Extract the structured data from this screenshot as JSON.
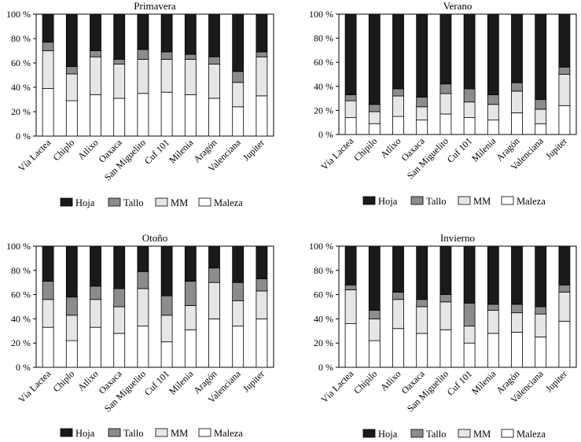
{
  "colors": {
    "Maleza": "#ffffff",
    "MM": "#e6e6e6",
    "Tallo": "#8c8c8c",
    "Hoja": "#1a1a1a",
    "stroke": "#000000"
  },
  "chart_data": [
    {
      "type": "bar",
      "stacked": true,
      "title": "Primavera",
      "categories": [
        "Vía Lactea",
        "Chiplo",
        "Atlixo",
        "Oaxaca",
        "San Miguelito",
        "Cuf 101",
        "Milenia",
        "Aragón",
        "Valenciana",
        "Jupiter"
      ],
      "series": [
        {
          "name": "Maleza",
          "values": [
            39,
            29,
            34,
            31,
            35,
            36,
            34,
            31,
            24,
            33
          ]
        },
        {
          "name": "MM",
          "values": [
            31,
            22,
            31,
            28,
            28,
            27,
            29,
            28,
            20,
            32
          ]
        },
        {
          "name": "Tallo",
          "values": [
            7,
            6,
            5,
            4,
            8,
            6,
            4,
            6,
            9,
            4
          ]
        },
        {
          "name": "Hoja",
          "values": [
            23,
            43,
            30,
            37,
            29,
            31,
            33,
            35,
            47,
            31
          ]
        }
      ],
      "ylim": [
        0,
        100
      ],
      "yticks": [
        "0 %",
        "20 %",
        "40 %",
        "60 %",
        "80 %",
        "100 %"
      ],
      "legend": [
        "Hoja",
        "Tallo",
        "MM",
        "Maleza"
      ]
    },
    {
      "type": "bar",
      "stacked": true,
      "title": "Verano",
      "categories": [
        "Vía Lactea",
        "Chipilo",
        "Atlixo",
        "Oaxaca",
        "San Miguelito",
        "Cuf 101",
        "Milenia",
        "Aragón",
        "Valenciana",
        "Jupiter"
      ],
      "series": [
        {
          "name": "Maleza",
          "values": [
            14,
            9,
            15,
            12,
            17,
            14,
            12,
            18,
            9,
            24
          ]
        },
        {
          "name": "MM",
          "values": [
            14,
            10,
            17,
            11,
            17,
            13,
            13,
            18,
            12,
            26
          ]
        },
        {
          "name": "Tallo",
          "values": [
            5,
            6,
            6,
            8,
            8,
            11,
            8,
            7,
            8,
            6
          ]
        },
        {
          "name": "Hoja",
          "values": [
            67,
            75,
            62,
            69,
            58,
            62,
            67,
            57,
            71,
            44
          ]
        }
      ],
      "ylim": [
        0,
        100
      ],
      "yticks": [
        "0 %",
        "20 %",
        "40 %",
        "60 %",
        "80 %",
        "100 %"
      ],
      "legend": [
        "Hoja",
        "Tallo",
        "MM",
        "Maleza"
      ]
    },
    {
      "type": "bar",
      "stacked": true,
      "title": "Otoño",
      "categories": [
        "Vía Lactea",
        "Chiplo",
        "Atlixo",
        "Oaxaca",
        "San Miguelito",
        "Cuf 101",
        "Milenia",
        "Aragón",
        "Valenciana",
        "Jupiter"
      ],
      "series": [
        {
          "name": "Maleza",
          "values": [
            33,
            22,
            33,
            28,
            34,
            21,
            31,
            40,
            34,
            40
          ]
        },
        {
          "name": "MM",
          "values": [
            23,
            21,
            23,
            22,
            31,
            22,
            20,
            30,
            21,
            23
          ]
        },
        {
          "name": "Tallo",
          "values": [
            15,
            15,
            11,
            15,
            14,
            16,
            20,
            12,
            15,
            10
          ]
        },
        {
          "name": "Hoja",
          "values": [
            29,
            42,
            33,
            35,
            21,
            41,
            29,
            18,
            30,
            27
          ]
        }
      ],
      "ylim": [
        0,
        100
      ],
      "yticks": [
        "0 %",
        "20 %",
        "40 %",
        "60 %",
        "80 %",
        "100 %"
      ],
      "legend": [
        "Hoja",
        "Tallo",
        "MM",
        "Maleza"
      ]
    },
    {
      "type": "bar",
      "stacked": true,
      "title": "Invierno",
      "categories": [
        "Vía Lactea",
        "Chipilo",
        "Atlixo",
        "Oaxaca",
        "San Miguelito",
        "Cuf 101",
        "Milenia",
        "Aragón",
        "Valenciana",
        "Jupiter"
      ],
      "series": [
        {
          "name": "Maleza",
          "values": [
            36,
            22,
            32,
            28,
            31,
            20,
            28,
            29,
            25,
            38
          ]
        },
        {
          "name": "MM",
          "values": [
            28,
            18,
            24,
            22,
            23,
            14,
            19,
            16,
            19,
            24
          ]
        },
        {
          "name": "Tallo",
          "values": [
            4,
            7,
            6,
            6,
            6,
            19,
            5,
            7,
            6,
            6
          ]
        },
        {
          "name": "Hoja",
          "values": [
            32,
            53,
            38,
            44,
            40,
            47,
            48,
            48,
            50,
            32
          ]
        }
      ],
      "ylim": [
        0,
        100
      ],
      "yticks": [
        "0 %",
        "20 %",
        "40 %",
        "60 %",
        "80 %",
        "100 %"
      ],
      "legend": [
        "Hoja",
        "Tallo",
        "MM",
        "Maleza"
      ]
    }
  ]
}
